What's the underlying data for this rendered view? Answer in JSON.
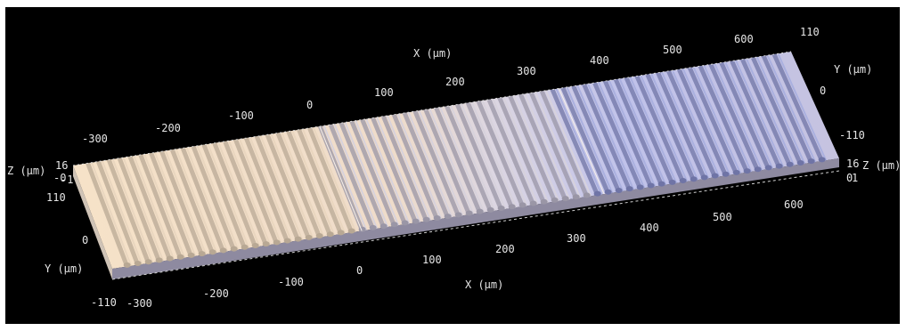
{
  "viewer": {
    "x_axis_title": "X (µm)",
    "y_axis_title": "Y (µm)",
    "z_axis_title": "Z (µm)",
    "x_ticks_top": [
      "-300",
      "-200",
      "-100",
      "0",
      "100",
      "200",
      "300",
      "400",
      "500",
      "600"
    ],
    "x_ticks_bottom": [
      "-300",
      "-200",
      "-100",
      "0",
      "100",
      "200",
      "300",
      "400",
      "500",
      "600"
    ],
    "y_ticks_right": [
      "110",
      "0",
      "-110"
    ],
    "y_ticks_left": [
      "110",
      "0",
      "-110"
    ],
    "z_ticks_left": [
      "16",
      "-0",
      "-1"
    ],
    "z_ticks_right": [
      "16",
      "0",
      "1"
    ],
    "sections": [
      {
        "name": "left",
        "ridges": 22
      },
      {
        "name": "middle",
        "ridges": 22
      },
      {
        "name": "right",
        "ridges": 22
      }
    ],
    "colors": {
      "background": "#000000",
      "sample_top_left": "#f2dcc4",
      "sample_top_mid": "#d8d4dc",
      "sample_top_right": "#b3b8e6",
      "sample_front": "#c9c3c9"
    }
  }
}
